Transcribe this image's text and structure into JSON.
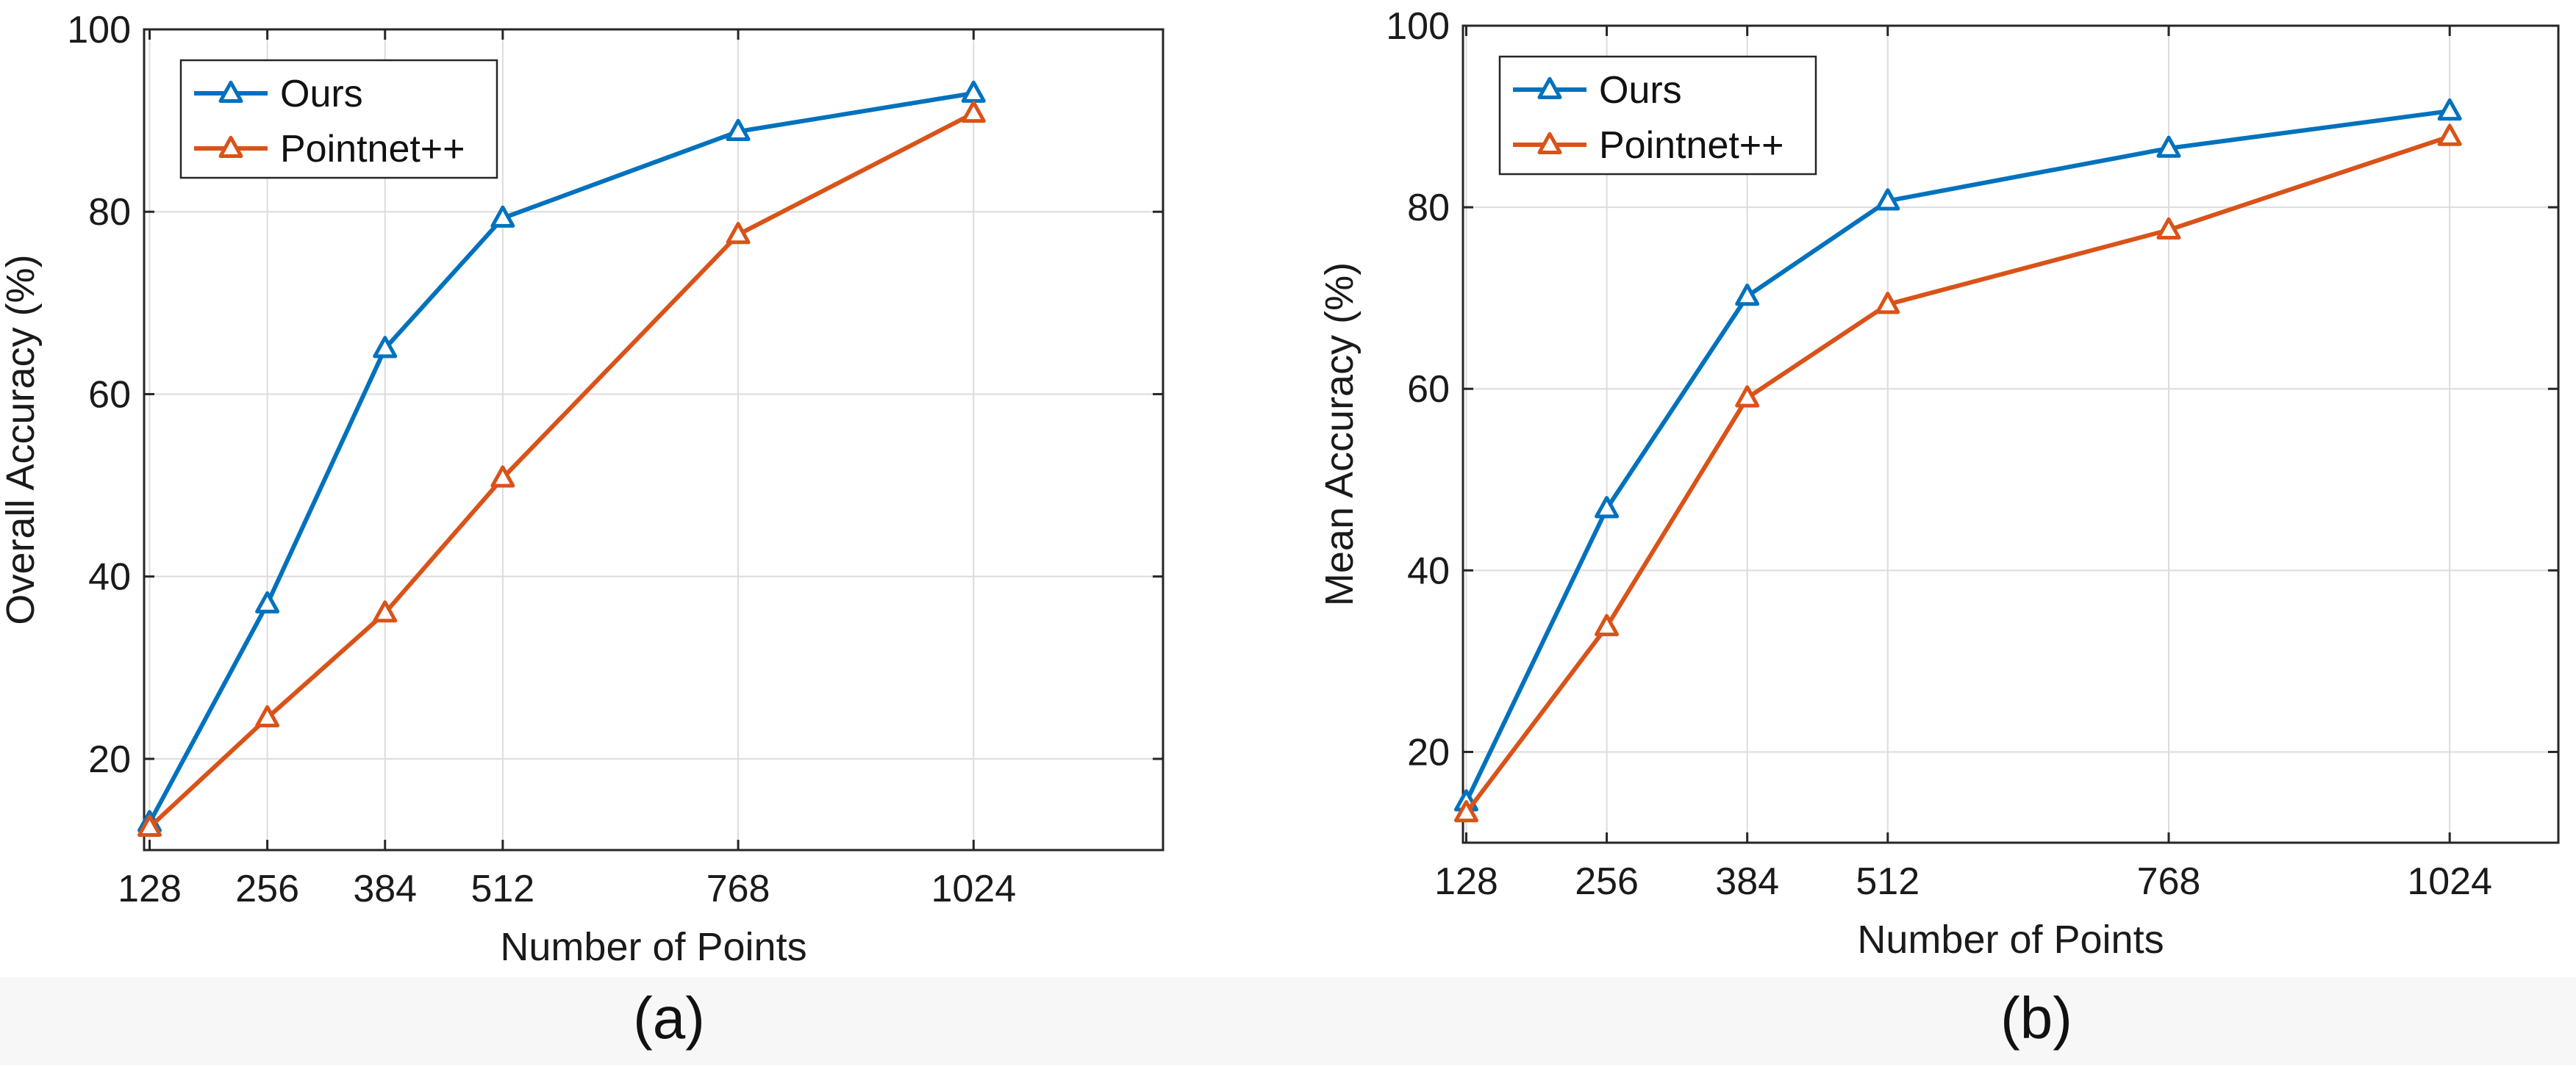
{
  "colors": {
    "ours": "#0072BD",
    "pointnet": "#D95319",
    "axis": "#262626",
    "grid": "#dcdcdc",
    "caption_band": "#f7f7f7"
  },
  "chart_data": [
    {
      "type": "line",
      "panel_label": "(a)",
      "x": [
        128,
        256,
        384,
        512,
        768,
        1024
      ],
      "xlim": [
        122,
        1230
      ],
      "ylim": [
        10,
        100
      ],
      "xticks": [
        128,
        256,
        384,
        512,
        768,
        1024
      ],
      "yticks": [
        20,
        40,
        60,
        80,
        100
      ],
      "xlabel": "Number of Points",
      "ylabel": "Overall Accuracy (%)",
      "grid": true,
      "legend": "top-left",
      "marker": "triangle-open",
      "series": [
        {
          "name": "Ours",
          "color": "#0072BD",
          "values": [
            13.0,
            37.0,
            65.0,
            79.3,
            88.8,
            93.0
          ]
        },
        {
          "name": "Pointnet++",
          "color": "#D95319",
          "values": [
            12.5,
            24.5,
            36.0,
            50.8,
            77.5,
            90.8
          ]
        }
      ]
    },
    {
      "type": "line",
      "panel_label": "(b)",
      "x": [
        128,
        256,
        384,
        512,
        768,
        1024
      ],
      "xlim": [
        125,
        1123
      ],
      "ylim": [
        10,
        100
      ],
      "xticks": [
        128,
        256,
        384,
        512,
        768,
        1024
      ],
      "yticks": [
        20,
        40,
        60,
        80,
        100
      ],
      "xlabel": "Number of Points",
      "ylabel": "Mean Accuracy (%)",
      "grid": true,
      "legend": "top-left",
      "marker": "triangle-open",
      "series": [
        {
          "name": "Ours",
          "color": "#0072BD",
          "values": [
            14.5,
            46.8,
            70.2,
            80.7,
            86.5,
            90.6
          ]
        },
        {
          "name": "Pointnet++",
          "color": "#D95319",
          "values": [
            13.3,
            33.8,
            59.0,
            69.3,
            77.5,
            87.8
          ]
        }
      ]
    }
  ]
}
